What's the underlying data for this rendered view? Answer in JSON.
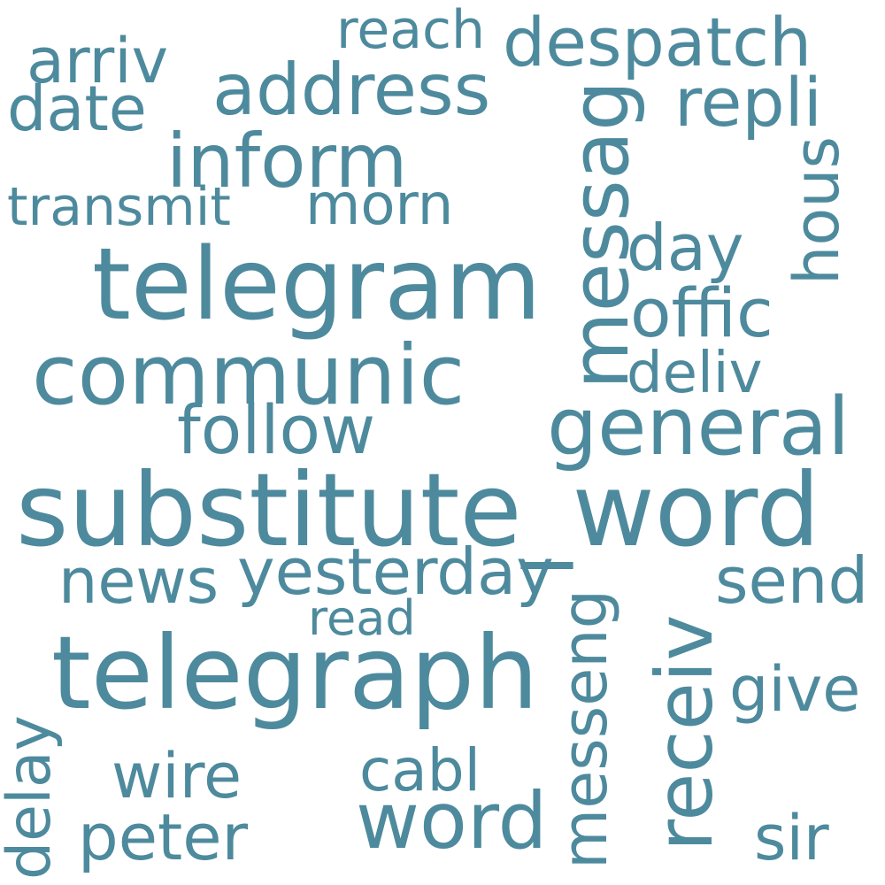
{
  "palette": {
    "word_color": "#4e8a9d",
    "background": "#ffffff"
  },
  "words": {
    "substitute_word": "substitute_word",
    "telegram": "telegram",
    "telegraph": "telegraph",
    "messag": "messag",
    "receiv": "receiv",
    "communic": "communic",
    "general": "general",
    "address": "address",
    "inform": "inform",
    "despatch": "despatch",
    "word": "word",
    "yesterday": "yesterday",
    "follow": "follow",
    "repli": "repli",
    "arriv": "arriv",
    "date": "date",
    "reach": "reach",
    "morn": "morn",
    "transmit": "transmit",
    "hous": "hous",
    "day": "day",
    "offic": "offic",
    "deliv": "deliv",
    "news": "news",
    "send": "send",
    "read": "read",
    "give": "give",
    "messeng": "messeng",
    "delay": "delay",
    "wire": "wire",
    "cabl": "cabl",
    "peter": "peter",
    "sir": "sir"
  }
}
